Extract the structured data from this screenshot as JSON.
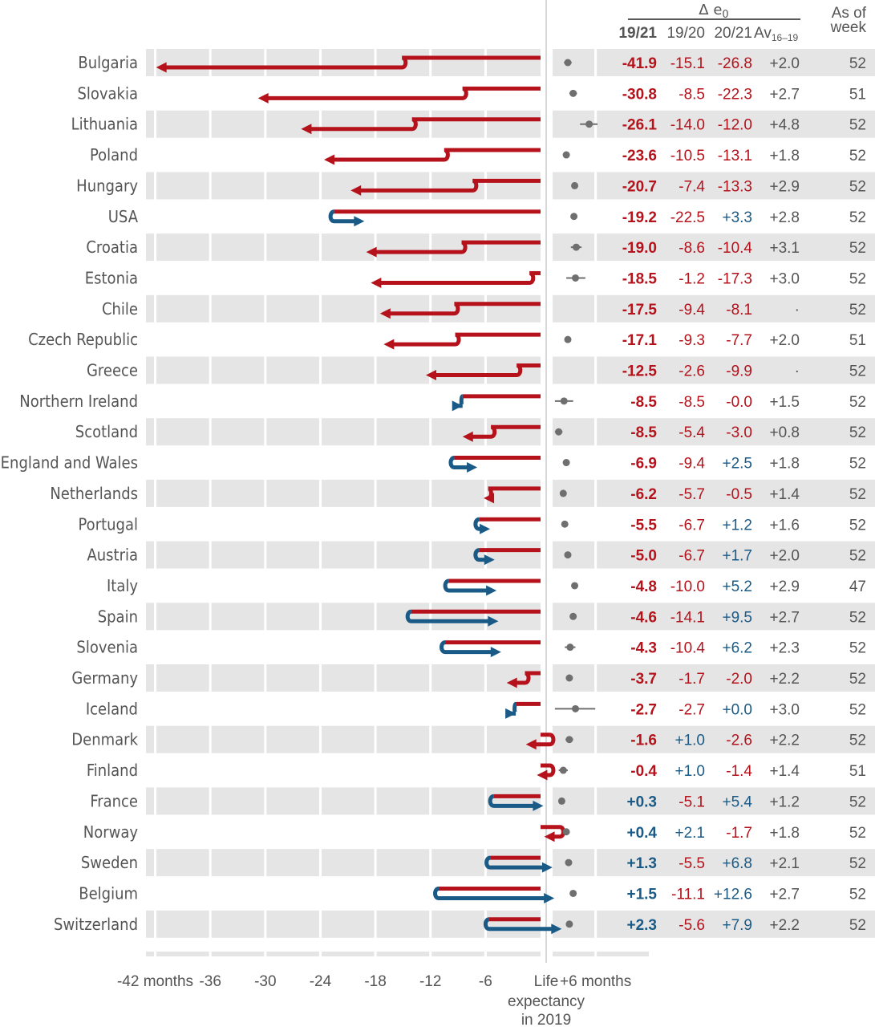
{
  "header": {
    "delta_label": "Δ e",
    "delta_sub": "0",
    "col_1921": "19/21",
    "col_1920": "19/20",
    "col_2021": "20/21",
    "col_av": "Av",
    "col_av_sub": "16–19",
    "as_of_line1": "As of",
    "as_of_line2": "week"
  },
  "x_axis": {
    "ticks": [
      {
        "value": -42,
        "label": "-42 months"
      },
      {
        "value": -36,
        "label": "-36"
      },
      {
        "value": -30,
        "label": "-30"
      },
      {
        "value": -24,
        "label": "-24"
      },
      {
        "value": -18,
        "label": "-18"
      },
      {
        "value": -12,
        "label": "-12"
      },
      {
        "value": -6,
        "label": "-6"
      },
      {
        "value": 6,
        "label": "+6 months"
      }
    ],
    "zero_label_lines": [
      "Life",
      "expectancy",
      "in 2019"
    ]
  },
  "colors": {
    "decline": "#b5121b",
    "gain": "#1a5a86",
    "band": "#e5e5e5",
    "text": "#555555",
    "dot": "#6f6f6f"
  },
  "chart_data": {
    "type": "arrow",
    "description_units": "months of life expectancy",
    "columns": [
      "19/21",
      "19/20",
      "20/21",
      "Av16-19",
      "As of week"
    ],
    "rows": [
      {
        "country": "Bulgaria",
        "d1921": "-41.9",
        "d1920": "-15.1",
        "d2021": "-26.8",
        "av": "+2.0",
        "week": "52",
        "av_lo": 1.5,
        "av_hi": 2.5
      },
      {
        "country": "Slovakia",
        "d1921": "-30.8",
        "d1920": "-8.5",
        "d2021": "-22.3",
        "av": "+2.7",
        "week": "51",
        "av_lo": 2.2,
        "av_hi": 3.2
      },
      {
        "country": "Lithuania",
        "d1921": "-26.1",
        "d1920": "-14.0",
        "d2021": "-12.0",
        "av": "+4.8",
        "week": "52",
        "av_lo": 3.6,
        "av_hi": 5.9
      },
      {
        "country": "Poland",
        "d1921": "-23.6",
        "d1920": "-10.5",
        "d2021": "-13.1",
        "av": "+1.8",
        "week": "52",
        "av_lo": 1.8,
        "av_hi": 1.8
      },
      {
        "country": "Hungary",
        "d1921": "-20.7",
        "d1920": "-7.4",
        "d2021": "-13.3",
        "av": "+2.9",
        "week": "52",
        "av_lo": 2.5,
        "av_hi": 3.3
      },
      {
        "country": "USA",
        "d1921": "-19.2",
        "d1920": "-22.5",
        "d2021": "+3.3",
        "av": "+2.8",
        "week": "52",
        "av_lo": 2.8,
        "av_hi": 2.8
      },
      {
        "country": "Croatia",
        "d1921": "-19.0",
        "d1920": "-8.6",
        "d2021": "-10.4",
        "av": "+3.1",
        "week": "52",
        "av_lo": 2.4,
        "av_hi": 3.8
      },
      {
        "country": "Estonia",
        "d1921": "-18.5",
        "d1920": "-1.2",
        "d2021": "-17.3",
        "av": "+3.0",
        "week": "52",
        "av_lo": 1.8,
        "av_hi": 4.3
      },
      {
        "country": "Chile",
        "d1921": "-17.5",
        "d1920": "-9.4",
        "d2021": "-8.1",
        "av": "·",
        "week": "52",
        "av_lo": null,
        "av_hi": null
      },
      {
        "country": "Czech Republic",
        "d1921": "-17.1",
        "d1920": "-9.3",
        "d2021": "-7.7",
        "av": "+2.0",
        "week": "51",
        "av_lo": 2.0,
        "av_hi": 2.0
      },
      {
        "country": "Greece",
        "d1921": "-12.5",
        "d1920": "-2.6",
        "d2021": "-9.9",
        "av": "·",
        "week": "52",
        "av_lo": null,
        "av_hi": null
      },
      {
        "country": "Northern Ireland",
        "d1921": "-8.5",
        "d1920": "-8.5",
        "d2021": "-0.0",
        "av": "+1.5",
        "week": "52",
        "av_lo": 0.3,
        "av_hi": 2.7
      },
      {
        "country": "Scotland",
        "d1921": "-8.5",
        "d1920": "-5.4",
        "d2021": "-3.0",
        "av": "+0.8",
        "week": "52",
        "av_lo": 0.3,
        "av_hi": 1.3
      },
      {
        "country": "England and Wales",
        "d1921": "-6.9",
        "d1920": "-9.4",
        "d2021": "+2.5",
        "av": "+1.8",
        "week": "52",
        "av_lo": 1.8,
        "av_hi": 1.8
      },
      {
        "country": "Netherlands",
        "d1921": "-6.2",
        "d1920": "-5.7",
        "d2021": "-0.5",
        "av": "+1.4",
        "week": "52",
        "av_lo": 1.4,
        "av_hi": 1.4
      },
      {
        "country": "Portugal",
        "d1921": "-5.5",
        "d1920": "-6.7",
        "d2021": "+1.2",
        "av": "+1.6",
        "week": "52",
        "av_lo": 1.6,
        "av_hi": 1.6
      },
      {
        "country": "Austria",
        "d1921": "-5.0",
        "d1920": "-6.7",
        "d2021": "+1.7",
        "av": "+2.0",
        "week": "52",
        "av_lo": 1.7,
        "av_hi": 2.3
      },
      {
        "country": "Italy",
        "d1921": "-4.8",
        "d1920": "-10.0",
        "d2021": "+5.2",
        "av": "+2.9",
        "week": "47",
        "av_lo": 2.9,
        "av_hi": 2.9
      },
      {
        "country": "Spain",
        "d1921": "-4.6",
        "d1920": "-14.1",
        "d2021": "+9.5",
        "av": "+2.7",
        "week": "52",
        "av_lo": 2.7,
        "av_hi": 2.7
      },
      {
        "country": "Slovenia",
        "d1921": "-4.3",
        "d1920": "-10.4",
        "d2021": "+6.2",
        "av": "+2.3",
        "week": "52",
        "av_lo": 1.6,
        "av_hi": 3.0
      },
      {
        "country": "Germany",
        "d1921": "-3.7",
        "d1920": "-1.7",
        "d2021": "-2.0",
        "av": "+2.2",
        "week": "52",
        "av_lo": 2.2,
        "av_hi": 2.2
      },
      {
        "country": "Iceland",
        "d1921": "-2.7",
        "d1920": "-2.7",
        "d2021": "+0.0",
        "av": "+3.0",
        "week": "52",
        "av_lo": 0.3,
        "av_hi": 5.6
      },
      {
        "country": "Denmark",
        "d1921": "-1.6",
        "d1920": "+1.0",
        "d2021": "-2.6",
        "av": "+2.2",
        "week": "52",
        "av_lo": 1.7,
        "av_hi": 2.7
      },
      {
        "country": "Finland",
        "d1921": "-0.4",
        "d1920": "+1.0",
        "d2021": "-1.4",
        "av": "+1.4",
        "week": "51",
        "av_lo": 0.8,
        "av_hi": 2.0
      },
      {
        "country": "France",
        "d1921": "+0.3",
        "d1920": "-5.1",
        "d2021": "+5.4",
        "av": "+1.2",
        "week": "52",
        "av_lo": 1.2,
        "av_hi": 1.2
      },
      {
        "country": "Norway",
        "d1921": "+0.4",
        "d1920": "+2.1",
        "d2021": "-1.7",
        "av": "+1.8",
        "week": "52",
        "av_lo": 1.8,
        "av_hi": 1.8
      },
      {
        "country": "Sweden",
        "d1921": "+1.3",
        "d1920": "-5.5",
        "d2021": "+6.8",
        "av": "+2.1",
        "week": "52",
        "av_lo": 2.1,
        "av_hi": 2.1
      },
      {
        "country": "Belgium",
        "d1921": "+1.5",
        "d1920": "-11.1",
        "d2021": "+12.6",
        "av": "+2.7",
        "week": "52",
        "av_lo": 2.7,
        "av_hi": 2.7
      },
      {
        "country": "Switzerland",
        "d1921": "+2.3",
        "d1920": "-5.6",
        "d2021": "+7.9",
        "av": "+2.2",
        "week": "52",
        "av_lo": 2.2,
        "av_hi": 2.2
      }
    ]
  }
}
